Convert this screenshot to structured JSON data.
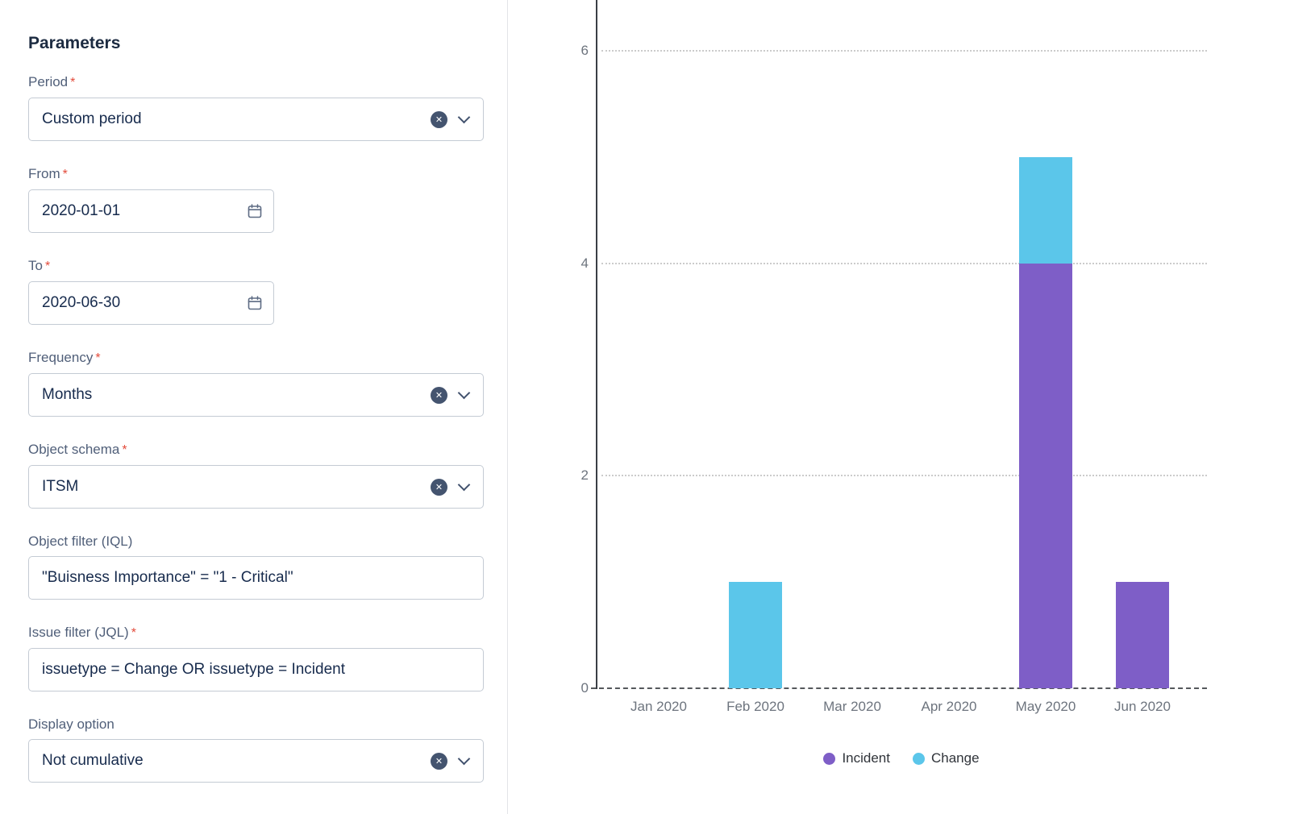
{
  "form": {
    "title": "Parameters",
    "required_marker": "*",
    "fields": {
      "period": {
        "label": "Period",
        "value": "Custom period",
        "required": true
      },
      "from": {
        "label": "From",
        "value": "2020-01-01",
        "required": true
      },
      "to": {
        "label": "To",
        "value": "2020-06-30",
        "required": true
      },
      "frequency": {
        "label": "Frequency",
        "value": "Months",
        "required": true
      },
      "object_schema": {
        "label": "Object schema",
        "value": "ITSM",
        "required": true
      },
      "object_filter": {
        "label": "Object filter (IQL)",
        "value": "\"Buisness Importance\" = \"1 - Critical\"",
        "required": false
      },
      "issue_filter": {
        "label": "Issue filter (JQL)",
        "value": "issuetype = Change OR issuetype = Incident",
        "required": true
      },
      "display_option": {
        "label": "Display option",
        "value": "Not cumulative",
        "required": false
      }
    }
  },
  "icons": {
    "clear_glyph": "✕"
  },
  "chart_data": {
    "type": "bar",
    "stacked": true,
    "title": "",
    "xlabel": "",
    "ylabel": "",
    "categories": [
      "Jan 2020",
      "Feb 2020",
      "Mar 2020",
      "Apr 2020",
      "May 2020",
      "Jun 2020"
    ],
    "series": [
      {
        "name": "Incident",
        "color": "#7e5ec7",
        "values": [
          0,
          0,
          0,
          0,
          4,
          1
        ]
      },
      {
        "name": "Change",
        "color": "#5bc6ea",
        "values": [
          0,
          1,
          0,
          0,
          1,
          0
        ]
      }
    ],
    "ylim": [
      0,
      6
    ],
    "yticks": [
      0,
      2,
      4,
      6
    ],
    "grid": "horizontal-dotted",
    "legend_position": "bottom"
  }
}
